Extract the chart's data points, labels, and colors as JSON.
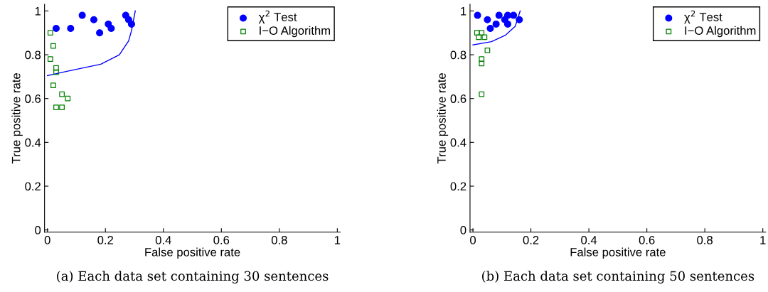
{
  "chart_data": [
    {
      "type": "scatter",
      "xlabel": "False positive rate",
      "ylabel": "True positive rate",
      "xlim": [
        -0.01,
        1.01
      ],
      "ylim": [
        -0.01,
        1.03
      ],
      "xticks": [
        0,
        0.2,
        0.4,
        0.6,
        0.8,
        1
      ],
      "yticks": [
        0,
        0.2,
        0.4,
        0.6,
        0.8,
        1
      ],
      "grid": false,
      "legend": "top right",
      "annotations": [
        "(a) Each data set containing 30 sentences"
      ],
      "series": [
        {
          "name": "χ$^{2}$ Test",
          "color": "#0000ff",
          "marker": "circle",
          "x": [
            0.03,
            0.08,
            0.12,
            0.16,
            0.18,
            0.21,
            0.22,
            0.27,
            0.28,
            0.29
          ],
          "values": [
            0.92,
            0.92,
            0.98,
            0.96,
            0.9,
            0.94,
            0.92,
            0.98,
            0.96,
            0.94
          ]
        },
        {
          "name": "I−O Algorithm",
          "color": "#008000",
          "marker": "square",
          "x": [
            0.01,
            0.02,
            0.01,
            0.03,
            0.03,
            0.02,
            0.05,
            0.07,
            0.03,
            0.05
          ],
          "values": [
            0.9,
            0.84,
            0.78,
            0.74,
            0.72,
            0.66,
            0.62,
            0.6,
            0.56,
            0.56
          ]
        },
        {
          "type": "line",
          "color": "#0000ff",
          "x": [
            0.0,
            0.07,
            0.184,
            0.248,
            0.28,
            0.29,
            0.303
          ],
          "values": [
            0.705,
            0.725,
            0.757,
            0.8,
            0.863,
            0.91,
            1.0
          ]
        }
      ]
    },
    {
      "type": "scatter",
      "xlabel": "False positive rate",
      "ylabel": "True positive rate",
      "xlim": [
        -0.01,
        1.01
      ],
      "ylim": [
        -0.01,
        1.03
      ],
      "xticks": [
        0,
        0.2,
        0.4,
        0.6,
        0.8,
        1
      ],
      "yticks": [
        0,
        0.2,
        0.4,
        0.6,
        0.8,
        1
      ],
      "grid": false,
      "legend": "top right",
      "annotations": [
        "(b) Each data set containing 50 sentences"
      ],
      "series": [
        {
          "name": "χ$^{2}$ Test",
          "color": "#0000ff",
          "marker": "circle",
          "x": [
            0.016,
            0.05,
            0.06,
            0.08,
            0.09,
            0.11,
            0.12,
            0.12,
            0.14,
            0.16
          ],
          "values": [
            0.98,
            0.96,
            0.92,
            0.94,
            0.98,
            0.96,
            0.98,
            0.94,
            0.98,
            0.96
          ]
        },
        {
          "name": "I−O Algorithm",
          "color": "#008000",
          "marker": "square",
          "x": [
            0.014,
            0.03,
            0.02,
            0.04,
            0.05,
            0.03,
            0.03,
            0.03
          ],
          "values": [
            0.9,
            0.9,
            0.88,
            0.88,
            0.82,
            0.78,
            0.76,
            0.62
          ]
        },
        {
          "type": "line",
          "color": "#0000ff",
          "x": [
            0.0,
            0.064,
            0.113,
            0.146,
            0.163
          ],
          "values": [
            0.845,
            0.86,
            0.89,
            0.93,
            1.0
          ]
        }
      ]
    }
  ]
}
